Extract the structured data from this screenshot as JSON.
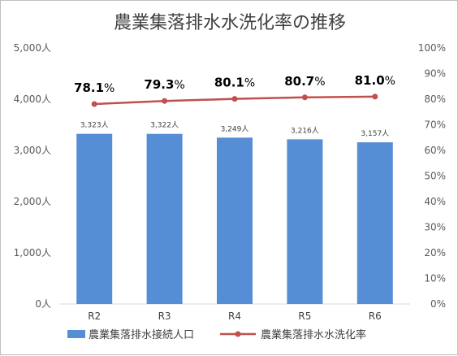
{
  "chart_data": {
    "type": "bar",
    "title": "農業集落排水水洗化率の推移",
    "categories": [
      "R2",
      "R3",
      "R4",
      "R5",
      "R6"
    ],
    "series": [
      {
        "name": "農業集落排水接続人口",
        "type": "bar",
        "axis": "left",
        "color": "#558ed5",
        "values": [
          3323,
          3322,
          3249,
          3216,
          3157
        ],
        "labels": [
          "3,323人",
          "3,322人",
          "3,249人",
          "3,216人",
          "3,157人"
        ]
      },
      {
        "name": "農業集落排水水洗化率",
        "type": "line",
        "axis": "right",
        "color": "#c0504d",
        "values": [
          78.1,
          79.3,
          80.1,
          80.7,
          81.0
        ],
        "labels": [
          "78.1",
          "79.3",
          "80.1",
          "80.7",
          "81.0"
        ],
        "label_unit": "%"
      }
    ],
    "y_left": {
      "range": [
        0,
        5000
      ],
      "ticks": [
        "0人",
        "1,000人",
        "2,000人",
        "3,000人",
        "4,000人",
        "5,000人"
      ]
    },
    "y_right": {
      "range": [
        0,
        100
      ],
      "ticks": [
        "0%",
        "10%",
        "20%",
        "30%",
        "40%",
        "50%",
        "60%",
        "70%",
        "80%",
        "90%",
        "100%"
      ]
    },
    "grid": false,
    "legend_position": "bottom"
  }
}
